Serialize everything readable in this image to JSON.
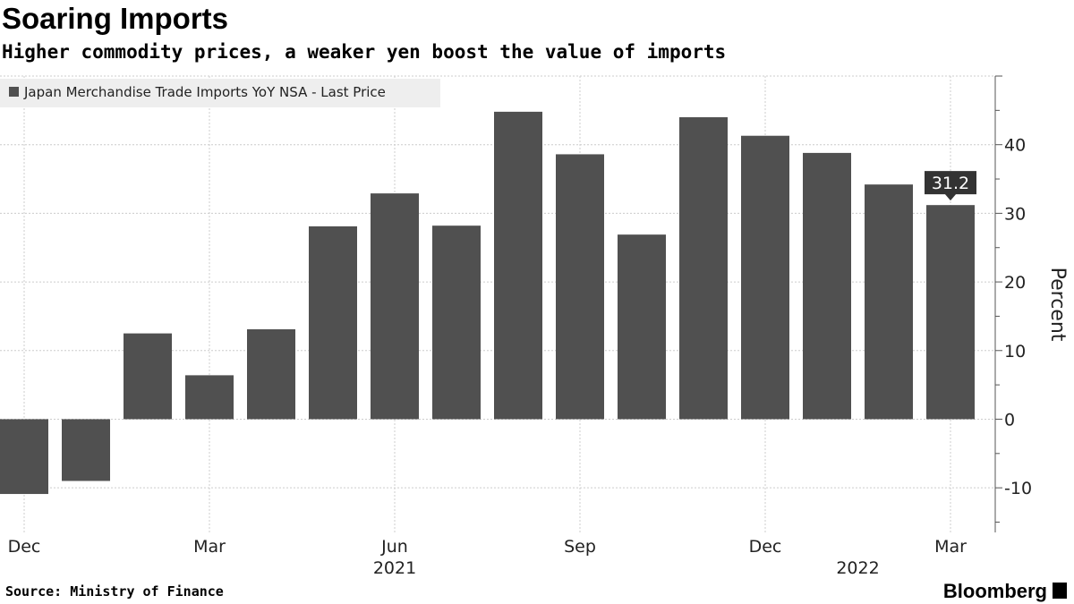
{
  "chart_data": {
    "type": "bar",
    "title": "Soaring Imports",
    "subtitle": "Higher commodity prices, a weaker yen boost the value of imports",
    "legend": {
      "label": "Japan Merchandise Trade Imports YoY NSA - Last Price",
      "placement": "top-left"
    },
    "categories": [
      "Dec 2020",
      "Jan 2021",
      "Feb 2021",
      "Mar 2021",
      "Apr 2021",
      "May 2021",
      "Jun 2021",
      "Jul 2021",
      "Aug 2021",
      "Sep 2021",
      "Oct 2021",
      "Nov 2021",
      "Dec 2021",
      "Jan 2022",
      "Feb 2022",
      "Mar 2022"
    ],
    "values": [
      -10.9,
      -9.0,
      12.5,
      6.4,
      13.1,
      28.1,
      32.9,
      28.2,
      44.8,
      38.6,
      26.9,
      44.0,
      41.3,
      38.8,
      34.2,
      31.2
    ],
    "x_tick_labels": [
      {
        "label": "Dec",
        "index": 0
      },
      {
        "label": "Mar",
        "index": 3
      },
      {
        "label": "Jun",
        "index": 6
      },
      {
        "label": "Sep",
        "index": 9
      },
      {
        "label": "Dec",
        "index": 12
      },
      {
        "label": "Mar",
        "index": 15
      }
    ],
    "year_labels": [
      {
        "label": "2021",
        "index": 6
      },
      {
        "label": "2022",
        "index": 13.5
      }
    ],
    "ylabel": "Percent",
    "y_ticks": [
      -10,
      0,
      10,
      20,
      30,
      40
    ],
    "ylim": [
      -16.5,
      50
    ],
    "last_value_label": "31.2",
    "grid": true,
    "bar_color": "#505050",
    "y_axis_side": "right"
  },
  "source": "Source: Ministry of Finance",
  "brand": "Bloomberg"
}
